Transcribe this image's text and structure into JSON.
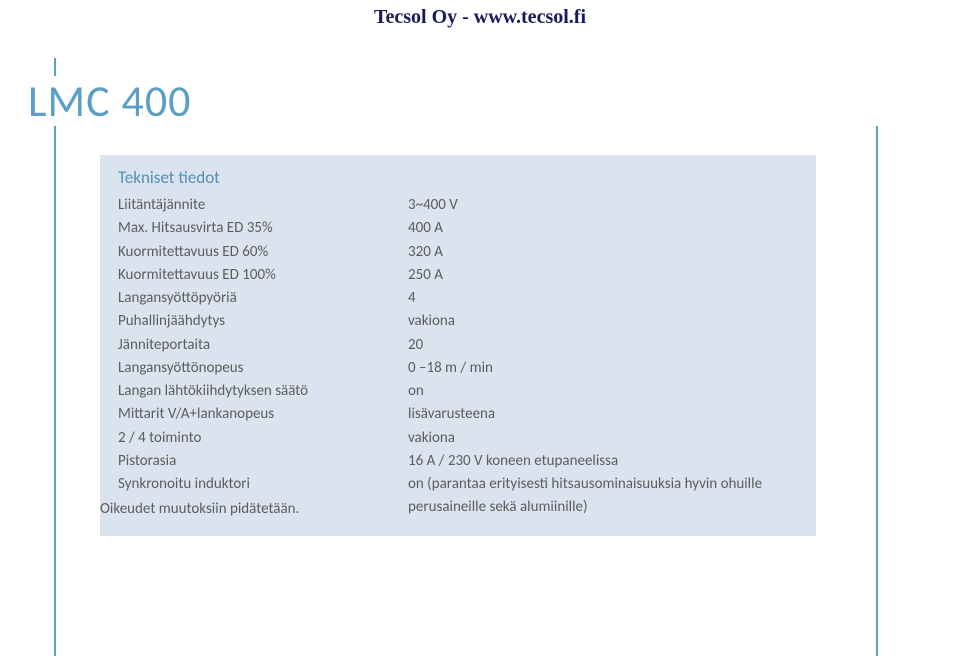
{
  "header_overlay": "Tecsol Oy - www.tecsol.fi",
  "product_title": "LMC 400",
  "spec_heading": "Tekniset tiedot",
  "specs": [
    {
      "label": "Liitäntäjännite",
      "value": "3~400 V"
    },
    {
      "label": "Max. Hitsausvirta ED 35%",
      "value": "400 A"
    },
    {
      "label": "Kuormitettavuus ED 60%",
      "value": "320 A"
    },
    {
      "label": "Kuormitettavuus ED 100%",
      "value": "250 A"
    },
    {
      "label": "Langansyöttöpyöriä",
      "value": "4"
    },
    {
      "label": "Puhallinjäähdytys",
      "value": "vakiona"
    },
    {
      "label": "Jänniteportaita",
      "value": "20"
    },
    {
      "label": "Langansyöttönopeus",
      "value": "0 –18 m / min"
    },
    {
      "label": "Langan lähtökiihdytyksen säätö",
      "value": "on"
    },
    {
      "label": "Mittarit V/A+lankanopeus",
      "value": "lisävarusteena"
    },
    {
      "label": "2 / 4 toiminto",
      "value": "vakiona"
    },
    {
      "label": "Pistorasia",
      "value": "16 A / 230 V koneen etupaneelissa"
    },
    {
      "label": "Synkronoitu induktori",
      "value": "on (parantaa erityisesti hitsausominaisuuksia hyvin ohuille perusaineille sekä alumiinille)"
    }
  ],
  "footnote": "Oikeudet muutoksiin pidätetään.",
  "colors": {
    "accent": "#5b9fc7",
    "panel_bg": "#dbe4ee",
    "body_text": "#5c5c5c",
    "header_text": "#1a1a5a"
  }
}
